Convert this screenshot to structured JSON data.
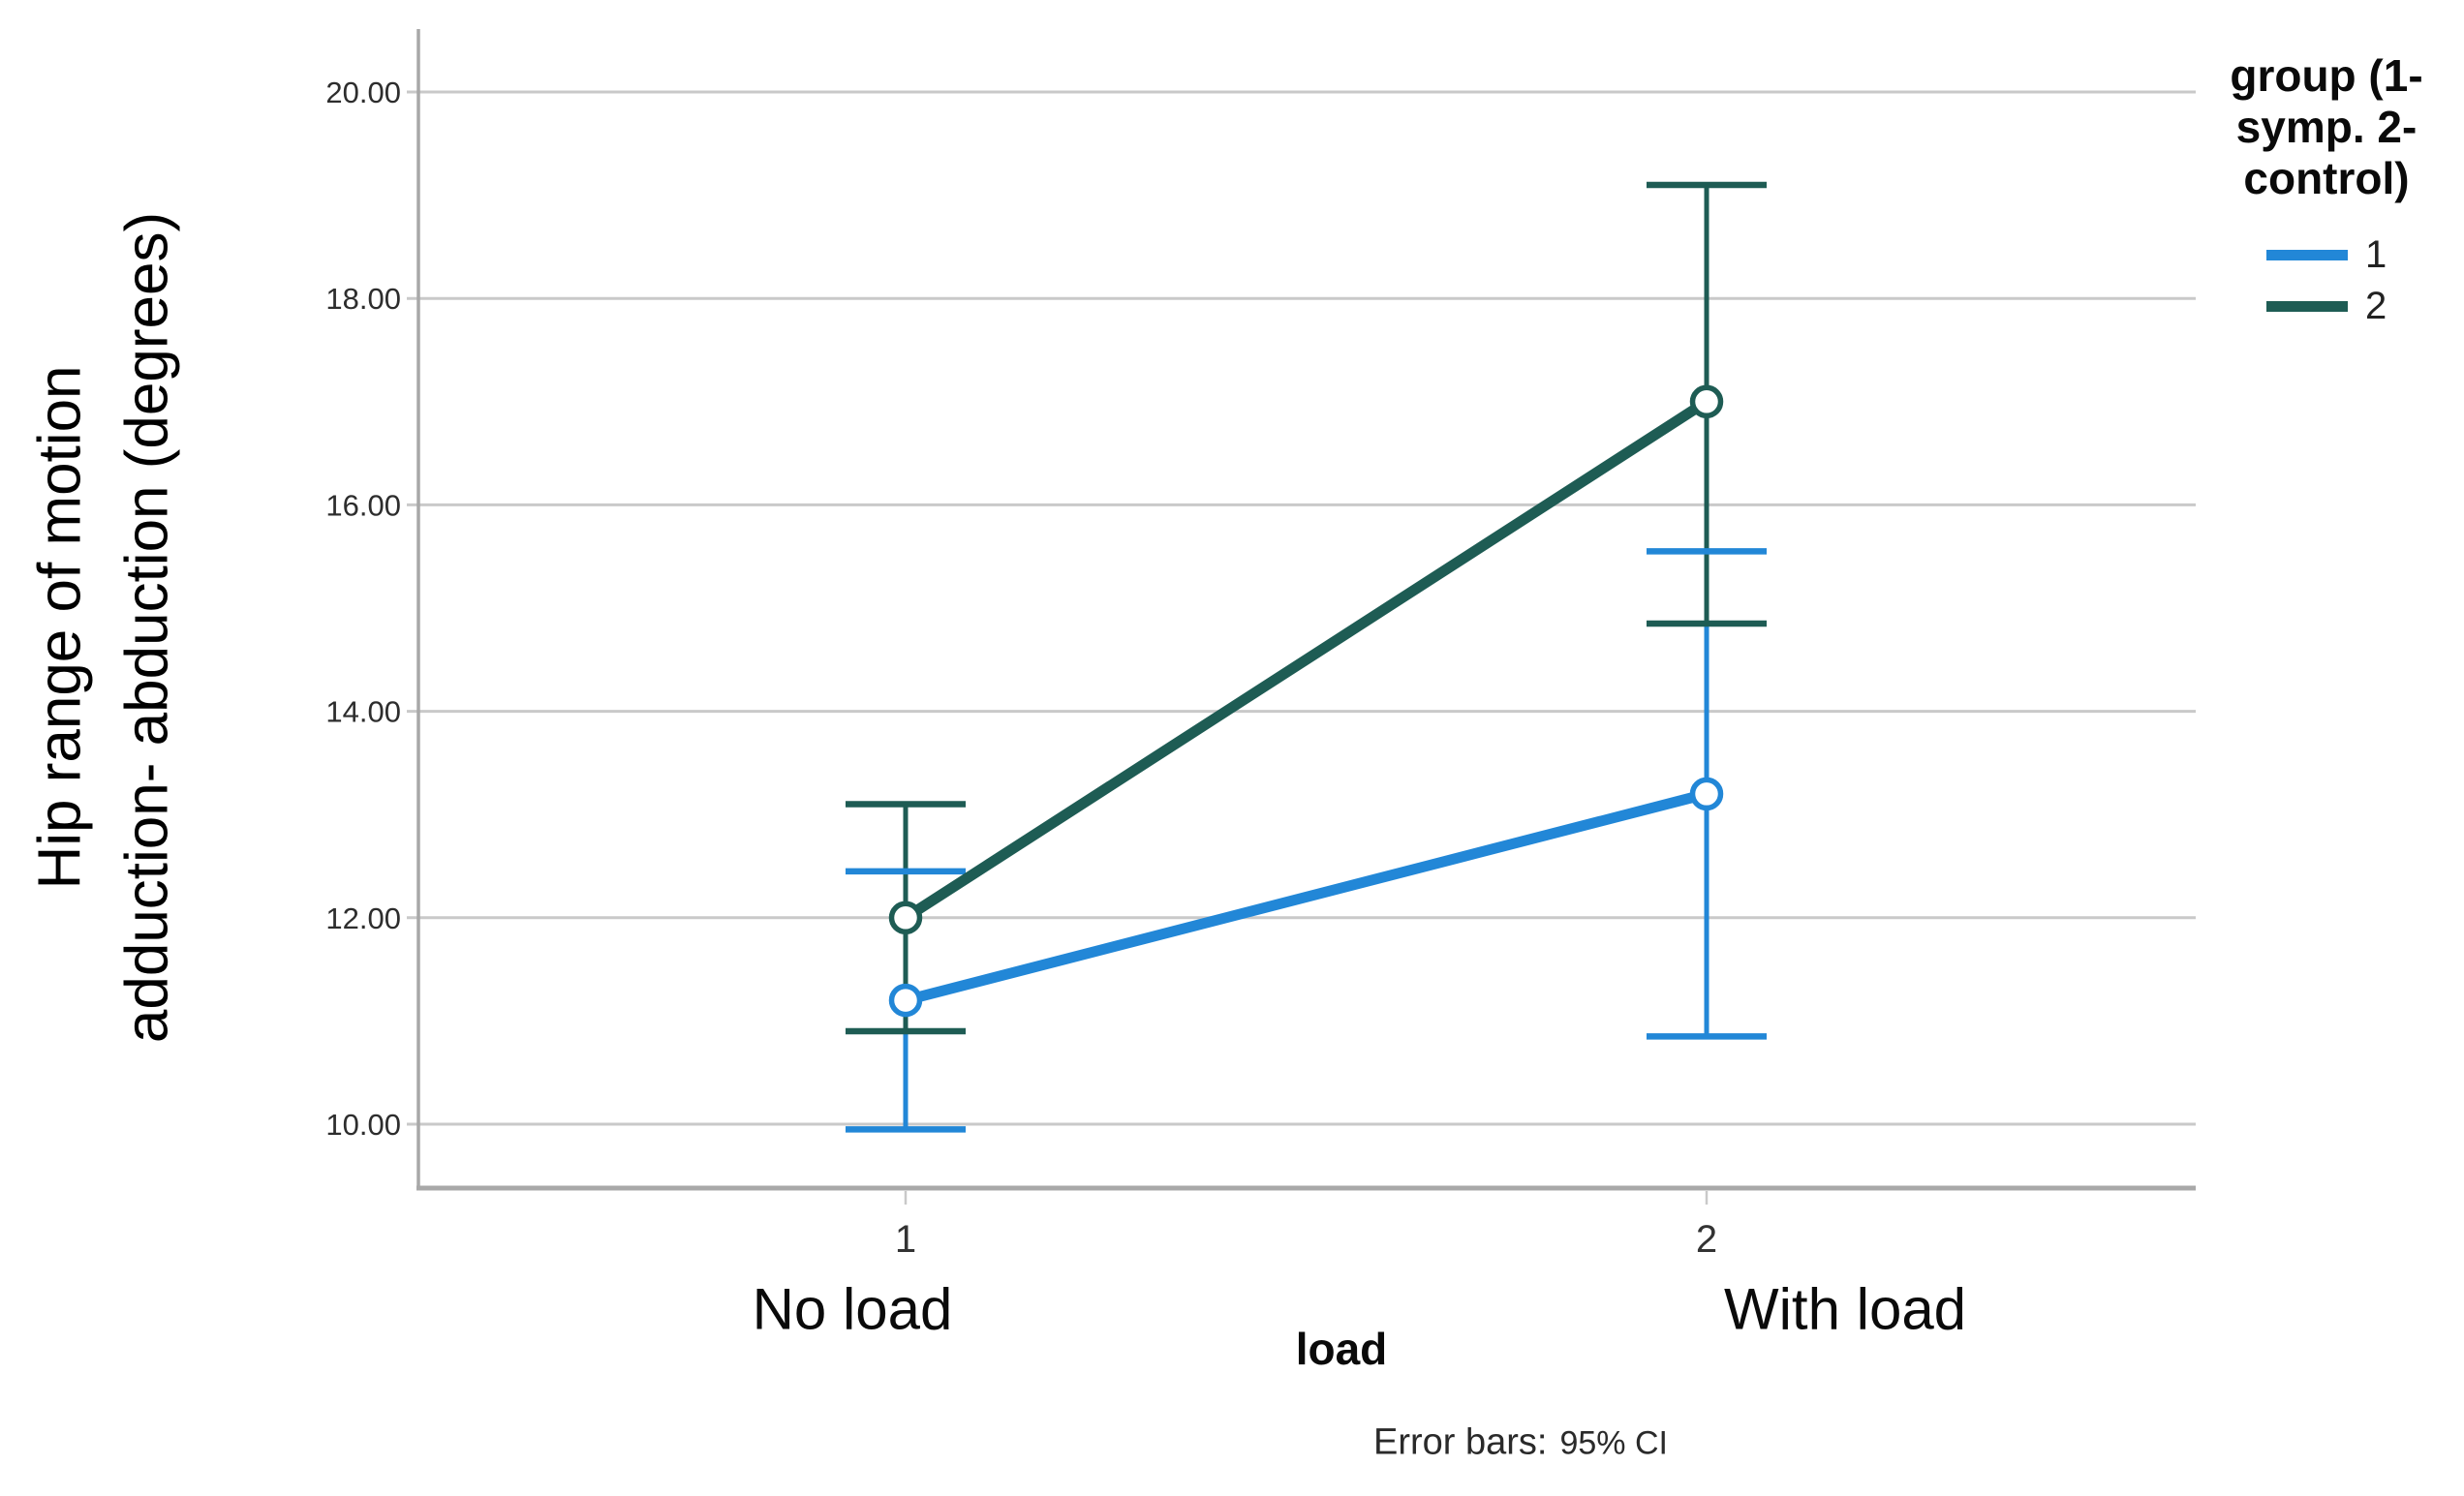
{
  "window": {
    "background": "#ffffff"
  },
  "y_axis": {
    "title_lines": [
      "Hip range of motion",
      "adduction- abduction (degrees)"
    ],
    "tick_values": [
      20,
      18,
      16,
      14,
      12,
      10
    ],
    "tick_labels": [
      "20.00",
      "18.00",
      "16.00",
      "14.00",
      "12.00",
      "10.00"
    ]
  },
  "x_axis": {
    "title": "load",
    "tick_labels": [
      "1",
      "2"
    ],
    "category_labels": [
      "No load",
      "With load"
    ]
  },
  "legend": {
    "title_lines": [
      "group (1-",
      "symp. 2-",
      "control)"
    ],
    "items": [
      {
        "label": "1",
        "color": "#2287d7"
      },
      {
        "label": "2",
        "color": "#1e5c54"
      }
    ]
  },
  "footnote": {
    "prefix": "Error bars:",
    "ci": "95% CI"
  },
  "colors": {
    "gridline": "#c9c9c9",
    "axis": "#a8a8a8",
    "tick_text": "#2d2d2d"
  },
  "chart_data": {
    "type": "line",
    "title": "",
    "xlabel": "load",
    "ylabel": "Hip range of motion adduction- abduction (degrees)",
    "x_categories": [
      {
        "tick": "1",
        "label": "No load"
      },
      {
        "tick": "2",
        "label": "With load"
      }
    ],
    "yticks": [
      10,
      12,
      14,
      16,
      18,
      20
    ],
    "ytick_labels": [
      "10.00",
      "12.00",
      "14.00",
      "16.00",
      "18.00",
      "20.00"
    ],
    "ylim": [
      9.4,
      20.7
    ],
    "grid": true,
    "legend_title": "group (1- symp. 2- control)",
    "legend_position": "top-right",
    "error_bars": "95% CI",
    "marker": "open-circle",
    "series": [
      {
        "name": "1",
        "group": "symp.",
        "color": "#2287d7",
        "means": [
          11.2,
          13.2
        ],
        "ci_low": [
          9.95,
          10.85
        ],
        "ci_high": [
          12.45,
          15.55
        ]
      },
      {
        "name": "2",
        "group": "control",
        "color": "#1e5c54",
        "means": [
          12.0,
          17.0
        ],
        "ci_low": [
          10.9,
          14.85
        ],
        "ci_high": [
          13.1,
          19.1
        ]
      }
    ]
  }
}
